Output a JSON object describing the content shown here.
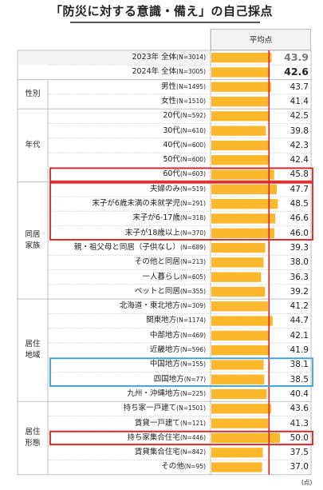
{
  "title": "「防災に対する意識・備え」の自己採点",
  "column_header": "平均点",
  "unit_note": "(点)",
  "colors": {
    "bar": "#fbb82c",
    "reference_line": "#e02020",
    "highlight_red": "#e02020",
    "highlight_blue": "#3aa0d8",
    "grid": "#d0d0d0"
  },
  "chart_data": {
    "type": "bar",
    "orientation": "horizontal",
    "reference_value": 42.6,
    "xlim": [
      0,
      50
    ],
    "series": [
      {
        "name": "平均点",
        "rows": [
          {
            "group": "",
            "label": "2023年 全体",
            "n": "(N=3014)",
            "value": 43.9,
            "value_text": "43.9",
            "style": "summary_gray"
          },
          {
            "group": "",
            "label": "2024年 全体",
            "n": "(N=3005)",
            "value": 42.6,
            "value_text": "42.6",
            "style": "summary_bold"
          },
          {
            "group": "性別",
            "label": "男性",
            "n": "(N=1495)",
            "value": 43.7,
            "value_text": "43.7"
          },
          {
            "group": "性別",
            "label": "女性",
            "n": "(N=1510)",
            "value": 41.4,
            "value_text": "41.4"
          },
          {
            "group": "年代",
            "label": "20代",
            "n": "(N=592)",
            "value": 42.5,
            "value_text": "42.5"
          },
          {
            "group": "年代",
            "label": "30代",
            "n": "(N=610)",
            "value": 39.8,
            "value_text": "39.8"
          },
          {
            "group": "年代",
            "label": "40代",
            "n": "(N=600)",
            "value": 42.3,
            "value_text": "42.3"
          },
          {
            "group": "年代",
            "label": "50代",
            "n": "(N=600)",
            "value": 42.4,
            "value_text": "42.4"
          },
          {
            "group": "年代",
            "label": "60代",
            "n": "(N=603)",
            "value": 45.8,
            "value_text": "45.8"
          },
          {
            "group": "同居家族",
            "label": "夫婦のみ",
            "n": "(N=519)",
            "value": 47.7,
            "value_text": "47.7"
          },
          {
            "group": "同居家族",
            "label": "末子が6歳未満の未就学児",
            "n": "(N=291)",
            "value": 48.5,
            "value_text": "48.5"
          },
          {
            "group": "同居家族",
            "label": "末子が6-17歳",
            "n": "(N=318)",
            "value": 46.6,
            "value_text": "46.6"
          },
          {
            "group": "同居家族",
            "label": "末子が18歳以上",
            "n": "(N=370)",
            "value": 46.0,
            "value_text": "46.0"
          },
          {
            "group": "同居家族",
            "label": "親・祖父母と同居（子供なし）",
            "n": "(N=689)",
            "value": 39.3,
            "value_text": "39.3"
          },
          {
            "group": "同居家族",
            "label": "その他と同居",
            "n": "(N=213)",
            "value": 38.0,
            "value_text": "38.0"
          },
          {
            "group": "同居家族",
            "label": "一人暮らし",
            "n": "(N=605)",
            "value": 36.3,
            "value_text": "36.3"
          },
          {
            "group": "同居家族",
            "label": "ペットと同居",
            "n": "(N=355)",
            "value": 39.2,
            "value_text": "39.2"
          },
          {
            "group": "居住地域",
            "label": "北海道・東北地方",
            "n": "(N=309)",
            "value": 41.2,
            "value_text": "41.2"
          },
          {
            "group": "居住地域",
            "label": "関東地方",
            "n": "(N=1174)",
            "value": 44.7,
            "value_text": "44.7"
          },
          {
            "group": "居住地域",
            "label": "中部地方",
            "n": "(N=469)",
            "value": 42.1,
            "value_text": "42.1"
          },
          {
            "group": "居住地域",
            "label": "近畿地方",
            "n": "(N=596)",
            "value": 41.9,
            "value_text": "41.9"
          },
          {
            "group": "居住地域",
            "label": "中国地方",
            "n": "(N=155)",
            "value": 38.1,
            "value_text": "38.1"
          },
          {
            "group": "居住地域",
            "label": "四国地方",
            "n": "(N=77)",
            "value": 38.5,
            "value_text": "38.5"
          },
          {
            "group": "居住地域",
            "label": "九州・沖縄地方",
            "n": "(N=225)",
            "value": 40.4,
            "value_text": "40.4"
          },
          {
            "group": "居住形態",
            "label": "持ち家一戸建て",
            "n": "(N=1501)",
            "value": 43.6,
            "value_text": "43.6"
          },
          {
            "group": "居住形態",
            "label": "賃貸一戸建て",
            "n": "(N=121)",
            "value": 41.3,
            "value_text": "41.3"
          },
          {
            "group": "居住形態",
            "label": "持ち家集合住宅",
            "n": "(N=446)",
            "value": 50.0,
            "value_text": "50.0"
          },
          {
            "group": "居住形態",
            "label": "賃貸集合住宅",
            "n": "(N=842)",
            "value": 37.5,
            "value_text": "37.5"
          },
          {
            "group": "居住形態",
            "label": "その他",
            "n": "(N=95)",
            "value": 37.0,
            "value_text": "37.0"
          }
        ]
      }
    ],
    "groups": [
      {
        "name": "性別",
        "display": "性別"
      },
      {
        "name": "年代",
        "display": "年代"
      },
      {
        "name": "同居家族",
        "display": "同居\n家族"
      },
      {
        "name": "居住地域",
        "display": "居住\n地域"
      },
      {
        "name": "居住形態",
        "display": "居住\n形態"
      }
    ],
    "highlights": [
      {
        "rows": [
          "60代"
        ],
        "color": "red"
      },
      {
        "rows": [
          "夫婦のみ",
          "末子が6歳未満の未就学児",
          "末子が6-17歳",
          "末子が18歳以上"
        ],
        "color": "red"
      },
      {
        "rows": [
          "中国地方",
          "四国地方"
        ],
        "color": "blue"
      },
      {
        "rows": [
          "持ち家集合住宅"
        ],
        "color": "red"
      }
    ]
  }
}
